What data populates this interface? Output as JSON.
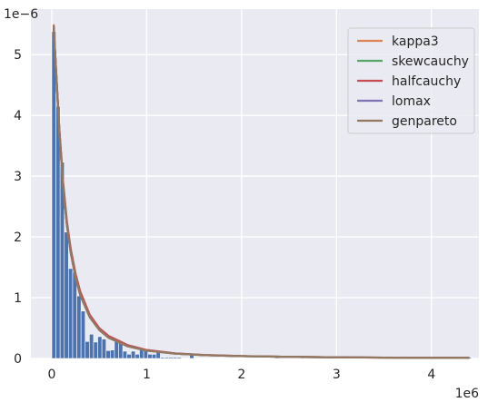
{
  "chart_data": {
    "type": "bar",
    "title": "",
    "xlabel": "",
    "ylabel": "",
    "x_offset_label": "1e6",
    "y_offset_label": "1e−6",
    "xlim": [
      -0.22,
      4.5
    ],
    "ylim": [
      0,
      5.75
    ],
    "x_ticks": [
      0,
      1,
      2,
      3,
      4
    ],
    "y_ticks": [
      0,
      1,
      2,
      3,
      4,
      5
    ],
    "grid": true,
    "legend_position": "top-right",
    "histogram": {
      "color": "#4c72b0",
      "bin_width": 0.044,
      "bins": [
        {
          "x": 0.0,
          "y": 5.38
        },
        {
          "x": 0.044,
          "y": 4.15
        },
        {
          "x": 0.088,
          "y": 3.23
        },
        {
          "x": 0.132,
          "y": 2.08
        },
        {
          "x": 0.176,
          "y": 1.48
        },
        {
          "x": 0.22,
          "y": 1.42
        },
        {
          "x": 0.264,
          "y": 1.03
        },
        {
          "x": 0.308,
          "y": 0.78
        },
        {
          "x": 0.352,
          "y": 0.28
        },
        {
          "x": 0.396,
          "y": 0.4
        },
        {
          "x": 0.44,
          "y": 0.27
        },
        {
          "x": 0.484,
          "y": 0.36
        },
        {
          "x": 0.528,
          "y": 0.32
        },
        {
          "x": 0.572,
          "y": 0.13
        },
        {
          "x": 0.616,
          "y": 0.14
        },
        {
          "x": 0.66,
          "y": 0.28
        },
        {
          "x": 0.704,
          "y": 0.28
        },
        {
          "x": 0.748,
          "y": 0.12
        },
        {
          "x": 0.792,
          "y": 0.07
        },
        {
          "x": 0.836,
          "y": 0.12
        },
        {
          "x": 0.88,
          "y": 0.07
        },
        {
          "x": 0.924,
          "y": 0.16
        },
        {
          "x": 0.968,
          "y": 0.16
        },
        {
          "x": 1.012,
          "y": 0.07
        },
        {
          "x": 1.056,
          "y": 0.07
        },
        {
          "x": 1.1,
          "y": 0.13
        },
        {
          "x": 1.144,
          "y": 0.02
        },
        {
          "x": 1.188,
          "y": 0.02
        },
        {
          "x": 1.232,
          "y": 0.02
        },
        {
          "x": 1.276,
          "y": 0.02
        },
        {
          "x": 1.32,
          "y": 0.02
        },
        {
          "x": 1.452,
          "y": 0.06
        },
        {
          "x": 2.354,
          "y": 0.02
        },
        {
          "x": 2.618,
          "y": 0.02
        },
        {
          "x": 3.982,
          "y": 0.02
        },
        {
          "x": 4.378,
          "y": 0.02
        }
      ]
    },
    "series": [
      {
        "name": "kappa3",
        "color": "#dd8452",
        "x": [
          0.02,
          0.05,
          0.08,
          0.12,
          0.16,
          0.2,
          0.25,
          0.3,
          0.4,
          0.5,
          0.6,
          0.8,
          1.0,
          1.3,
          1.6,
          2.0,
          2.5,
          3.0,
          3.5,
          4.0,
          4.4
        ],
        "y": [
          5.5,
          4.6,
          3.75,
          2.85,
          2.2,
          1.75,
          1.35,
          1.05,
          0.68,
          0.47,
          0.34,
          0.2,
          0.13,
          0.08,
          0.055,
          0.038,
          0.026,
          0.019,
          0.014,
          0.011,
          0.009
        ]
      },
      {
        "name": "skewcauchy",
        "color": "#55a868",
        "x": [
          0.02,
          0.05,
          0.08,
          0.12,
          0.16,
          0.2,
          0.25,
          0.3,
          0.4,
          0.5,
          0.6,
          0.8,
          1.0,
          1.3,
          1.6,
          2.0,
          2.5,
          3.0,
          3.5,
          4.0,
          4.4
        ],
        "y": [
          5.45,
          4.58,
          3.72,
          2.83,
          2.18,
          1.74,
          1.34,
          1.04,
          0.68,
          0.47,
          0.34,
          0.2,
          0.13,
          0.08,
          0.055,
          0.038,
          0.026,
          0.019,
          0.014,
          0.011,
          0.009
        ]
      },
      {
        "name": "halfcauchy",
        "color": "#c44e52",
        "x": [
          0.02,
          0.05,
          0.08,
          0.12,
          0.16,
          0.2,
          0.25,
          0.3,
          0.4,
          0.5,
          0.6,
          0.8,
          1.0,
          1.3,
          1.6,
          2.0,
          2.5,
          3.0,
          3.5,
          4.0,
          4.4
        ],
        "y": [
          5.45,
          4.62,
          3.78,
          2.9,
          2.25,
          1.8,
          1.4,
          1.1,
          0.72,
          0.5,
          0.37,
          0.22,
          0.14,
          0.085,
          0.058,
          0.04,
          0.027,
          0.019,
          0.014,
          0.011,
          0.009
        ]
      },
      {
        "name": "lomax",
        "color": "#8172b3",
        "x": [
          0.02,
          0.05,
          0.08,
          0.12,
          0.16,
          0.2,
          0.25,
          0.3,
          0.4,
          0.5,
          0.6,
          0.8,
          1.0,
          1.3,
          1.6,
          2.0,
          2.5,
          3.0,
          3.5,
          4.0,
          4.4
        ],
        "y": [
          5.48,
          4.6,
          3.74,
          2.84,
          2.19,
          1.74,
          1.34,
          1.04,
          0.68,
          0.47,
          0.34,
          0.2,
          0.13,
          0.08,
          0.055,
          0.038,
          0.026,
          0.019,
          0.014,
          0.011,
          0.009
        ]
      },
      {
        "name": "genpareto",
        "color": "#937860",
        "x": [
          0.02,
          0.05,
          0.08,
          0.12,
          0.16,
          0.2,
          0.25,
          0.3,
          0.4,
          0.5,
          0.6,
          0.8,
          1.0,
          1.3,
          1.6,
          2.0,
          2.5,
          3.0,
          3.5,
          4.0,
          4.4
        ],
        "y": [
          5.48,
          4.6,
          3.74,
          2.84,
          2.19,
          1.74,
          1.34,
          1.04,
          0.68,
          0.47,
          0.34,
          0.2,
          0.13,
          0.08,
          0.055,
          0.038,
          0.026,
          0.019,
          0.014,
          0.011,
          0.009
        ]
      }
    ]
  }
}
